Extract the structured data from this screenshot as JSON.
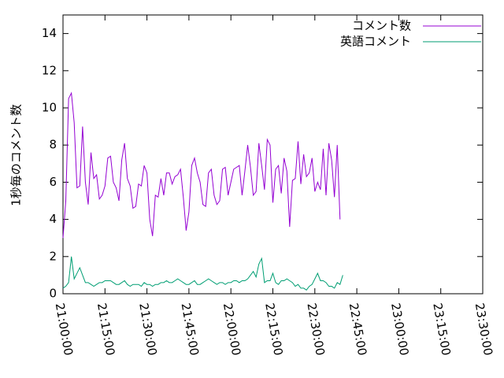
{
  "chart_data": {
    "type": "line",
    "title": "",
    "xlabel": "",
    "ylabel": "1秒毎のコメント数",
    "xlim_minutes": [
      1260,
      1410
    ],
    "ylim": [
      0,
      15
    ],
    "x_ticks": [
      "21:00:00",
      "21:15:00",
      "21:30:00",
      "21:45:00",
      "22:00:00",
      "22:15:00",
      "22:30:00",
      "22:45:00",
      "23:00:00",
      "23:15:00",
      "23:30:00"
    ],
    "y_ticks": [
      0,
      2,
      4,
      6,
      8,
      10,
      12,
      14
    ],
    "grid": false,
    "legend": "top-right",
    "x_start": "21:00:00",
    "x_step_minutes": 1,
    "series": [
      {
        "name": "コメント数",
        "color": "#9400d3",
        "values": [
          3.0,
          5.0,
          10.5,
          10.8,
          9.2,
          5.7,
          5.8,
          9.0,
          6.0,
          4.8,
          7.6,
          6.2,
          6.4,
          5.1,
          5.3,
          5.8,
          7.3,
          7.4,
          6.0,
          5.7,
          5.0,
          7.2,
          8.1,
          6.2,
          5.8,
          4.6,
          4.7,
          5.9,
          5.8,
          6.9,
          6.5,
          4.0,
          3.1,
          5.3,
          5.2,
          6.2,
          5.3,
          6.5,
          6.5,
          5.9,
          6.3,
          6.4,
          6.7,
          5.2,
          3.4,
          4.4,
          6.9,
          7.3,
          6.5,
          6.0,
          4.8,
          4.7,
          6.5,
          6.7,
          5.3,
          4.8,
          5.0,
          6.7,
          6.8,
          5.3,
          6.0,
          6.7,
          6.8,
          6.9,
          5.3,
          6.6,
          8.0,
          6.8,
          5.3,
          5.5,
          8.1,
          6.9,
          5.6,
          8.3,
          8.0,
          4.9,
          6.7,
          6.9,
          5.4,
          7.3,
          6.6,
          3.6,
          6.1,
          6.2,
          8.2,
          5.9,
          7.5,
          6.3,
          6.5,
          7.3,
          5.5,
          6.0,
          5.6,
          7.8,
          5.3,
          8.1,
          7.2,
          5.2,
          8.0,
          4.0
        ]
      },
      {
        "name": "英語コメント",
        "color": "#009e73",
        "values": [
          0.3,
          0.4,
          0.6,
          2.0,
          0.8,
          1.1,
          1.4,
          1.0,
          0.6,
          0.6,
          0.5,
          0.4,
          0.5,
          0.6,
          0.6,
          0.7,
          0.7,
          0.7,
          0.6,
          0.5,
          0.5,
          0.6,
          0.7,
          0.5,
          0.4,
          0.5,
          0.5,
          0.5,
          0.4,
          0.6,
          0.5,
          0.5,
          0.4,
          0.5,
          0.5,
          0.6,
          0.6,
          0.7,
          0.6,
          0.6,
          0.7,
          0.8,
          0.7,
          0.6,
          0.5,
          0.5,
          0.6,
          0.7,
          0.5,
          0.5,
          0.6,
          0.7,
          0.8,
          0.7,
          0.6,
          0.5,
          0.6,
          0.6,
          0.5,
          0.6,
          0.6,
          0.7,
          0.7,
          0.6,
          0.7,
          0.7,
          0.8,
          1.0,
          1.2,
          0.9,
          1.6,
          1.9,
          0.6,
          0.7,
          0.7,
          1.1,
          0.6,
          0.5,
          0.7,
          0.7,
          0.8,
          0.7,
          0.6,
          0.4,
          0.5,
          0.3,
          0.3,
          0.2,
          0.4,
          0.5,
          0.8,
          1.1,
          0.7,
          0.7,
          0.6,
          0.4,
          0.4,
          0.3,
          0.6,
          0.5,
          1.0
        ]
      }
    ]
  }
}
